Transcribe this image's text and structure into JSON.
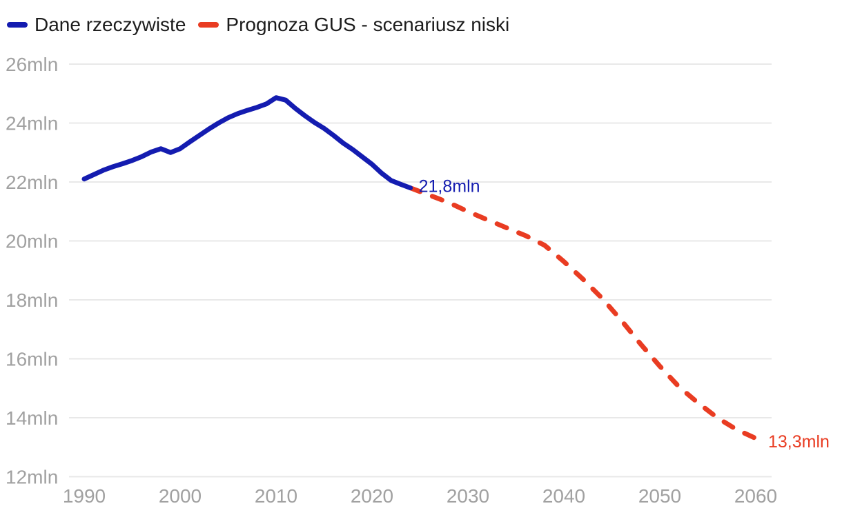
{
  "legend": {
    "items": [
      {
        "label": "Dane rzeczywiste"
      },
      {
        "label": "Prognoza GUS - scenariusz niski"
      }
    ]
  },
  "colors": {
    "actual": "#141cb0",
    "forecast": "#e93c22",
    "grid": "#e8e8e8",
    "axis_text": "#a1a1a1",
    "legend_text": "#1c1c1c",
    "background": "#ffffff"
  },
  "chart_data": {
    "type": "line",
    "title": "",
    "xlabel": "",
    "ylabel": "",
    "xlim": [
      1990,
      2060
    ],
    "ylim": [
      12,
      26
    ],
    "grid": {
      "horizontal": true,
      "vertical": false
    },
    "legend_position": "top-left",
    "x_ticks": [
      1990,
      2000,
      2010,
      2020,
      2030,
      2040,
      2050,
      2060
    ],
    "y_ticks": [
      {
        "value": 26,
        "label": "26mln"
      },
      {
        "value": 24,
        "label": "24mln"
      },
      {
        "value": 22,
        "label": "22mln"
      },
      {
        "value": 20,
        "label": "20mln"
      },
      {
        "value": 18,
        "label": "18mln"
      },
      {
        "value": 16,
        "label": "16mln"
      },
      {
        "value": 14,
        "label": "14mln"
      },
      {
        "value": 12,
        "label": "12mln"
      }
    ],
    "series": [
      {
        "key": "actual",
        "name": "Dane rzeczywiste",
        "line_style": "solid",
        "color": "#141cb0",
        "end_label": "21,8mln",
        "points": [
          [
            1990,
            22.1
          ],
          [
            1991,
            22.25
          ],
          [
            1992,
            22.4
          ],
          [
            1993,
            22.52
          ],
          [
            1994,
            22.62
          ],
          [
            1995,
            22.73
          ],
          [
            1996,
            22.86
          ],
          [
            1997,
            23.02
          ],
          [
            1998,
            23.13
          ],
          [
            1999,
            23.0
          ],
          [
            2000,
            23.13
          ],
          [
            2001,
            23.36
          ],
          [
            2002,
            23.58
          ],
          [
            2003,
            23.8
          ],
          [
            2004,
            24.0
          ],
          [
            2005,
            24.18
          ],
          [
            2006,
            24.32
          ],
          [
            2007,
            24.43
          ],
          [
            2008,
            24.53
          ],
          [
            2009,
            24.65
          ],
          [
            2010,
            24.86
          ],
          [
            2011,
            24.78
          ],
          [
            2012,
            24.5
          ],
          [
            2013,
            24.25
          ],
          [
            2014,
            24.02
          ],
          [
            2015,
            23.82
          ],
          [
            2016,
            23.58
          ],
          [
            2017,
            23.32
          ],
          [
            2018,
            23.1
          ],
          [
            2019,
            22.85
          ],
          [
            2020,
            22.6
          ],
          [
            2021,
            22.3
          ],
          [
            2022,
            22.05
          ],
          [
            2023,
            21.92
          ],
          [
            2024,
            21.8
          ]
        ]
      },
      {
        "key": "forecast",
        "name": "Prognoza GUS - scenariusz niski",
        "line_style": "dashed",
        "color": "#e93c22",
        "end_label": "13,3mln",
        "points": [
          [
            2024,
            21.8
          ],
          [
            2026,
            21.55
          ],
          [
            2028,
            21.3
          ],
          [
            2030,
            21.0
          ],
          [
            2032,
            20.72
          ],
          [
            2034,
            20.45
          ],
          [
            2036,
            20.18
          ],
          [
            2038,
            19.85
          ],
          [
            2040,
            19.3
          ],
          [
            2042,
            18.7
          ],
          [
            2044,
            18.05
          ],
          [
            2046,
            17.3
          ],
          [
            2048,
            16.5
          ],
          [
            2050,
            15.75
          ],
          [
            2052,
            15.05
          ],
          [
            2054,
            14.5
          ],
          [
            2056,
            14.0
          ],
          [
            2058,
            13.6
          ],
          [
            2060,
            13.3
          ]
        ]
      }
    ]
  }
}
